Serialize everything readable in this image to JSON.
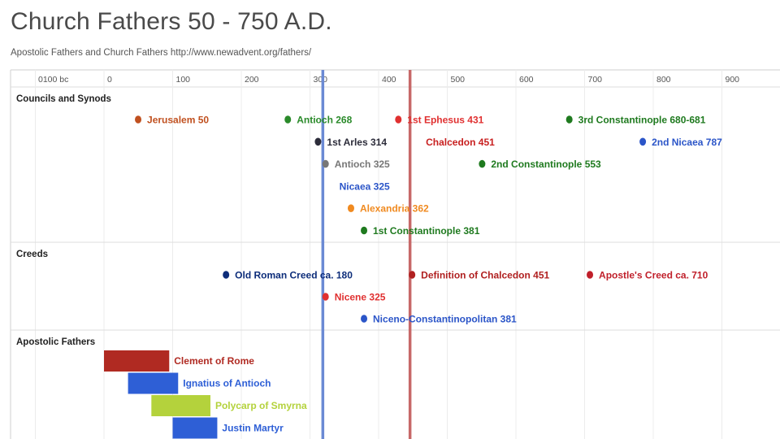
{
  "header": {
    "title": "Church Fathers 50 - 750 A.D.",
    "subtitle": "Apostolic Fathers and Church Fathers http://www.newadvent.org/fathers/"
  },
  "chart_data": {
    "type": "timeline",
    "axis": {
      "ticks": [
        {
          "value": -100,
          "label": "0100 bc"
        },
        {
          "value": 0,
          "label": "0"
        },
        {
          "value": 100,
          "label": "100"
        },
        {
          "value": 200,
          "label": "200"
        },
        {
          "value": 300,
          "label": "300"
        },
        {
          "value": 400,
          "label": "400"
        },
        {
          "value": 500,
          "label": "500"
        },
        {
          "value": 600,
          "label": "600"
        },
        {
          "value": 700,
          "label": "700"
        },
        {
          "value": 800,
          "label": "800"
        },
        {
          "value": 900,
          "label": "900"
        }
      ]
    },
    "markers": [
      {
        "year": 314,
        "color": "#6b8ad4"
      },
      {
        "year": 441,
        "color": "#c76868"
      }
    ],
    "sections": [
      {
        "label": "Councils and Synods",
        "events": [
          {
            "label": "Jerusalem 50",
            "year": 45,
            "row": 0,
            "color": "#c0501f",
            "dot": true
          },
          {
            "label": "Antioch 268",
            "year": 263,
            "row": 0,
            "color": "#2a8a2a",
            "dot": true
          },
          {
            "label": "1st Ephesus 431",
            "year": 424,
            "row": 0,
            "color": "#e03030",
            "dot": true
          },
          {
            "label": "3rd Constantinople 680-681",
            "year": 673,
            "row": 0,
            "color": "#1f7a1f",
            "dot": true
          },
          {
            "label": "1st Arles 314",
            "year": 307,
            "row": 1,
            "color": "#2c2c3a",
            "dot": true
          },
          {
            "label": "Chalcedon 451",
            "year": 451,
            "row": 1,
            "color": "#c82020",
            "dot": false
          },
          {
            "label": "2nd Nicaea 787",
            "year": 780,
            "row": 1,
            "color": "#2b55c8",
            "dot": true
          },
          {
            "label": "Antioch 325",
            "year": 318,
            "row": 2,
            "color": "#777777",
            "dot": true
          },
          {
            "label": "2nd Constantinople 553",
            "year": 546,
            "row": 2,
            "color": "#1f7a1f",
            "dot": true
          },
          {
            "label": "Nicaea 325",
            "year": 325,
            "row": 3,
            "color": "#2b55c8",
            "dot": false
          },
          {
            "label": "Alexandria 362",
            "year": 355,
            "row": 4,
            "color": "#f08a20",
            "dot": true
          },
          {
            "label": "1st Constantinople 381",
            "year": 374,
            "row": 5,
            "color": "#1f7a1f",
            "dot": true
          }
        ]
      },
      {
        "label": "Creeds",
        "events": [
          {
            "label": "Old Roman Creed ca. 180",
            "year": 173,
            "row": 0,
            "color": "#0d2d7a",
            "dot": true
          },
          {
            "label": "Definition of Chalcedon 451",
            "year": 444,
            "row": 0,
            "color": "#b02020",
            "dot": true
          },
          {
            "label": "Apostle's Creed ca. 710",
            "year": 703,
            "row": 0,
            "color": "#c01f2a",
            "dot": true
          },
          {
            "label": "Nicene 325",
            "year": 318,
            "row": 1,
            "color": "#e03030",
            "dot": true
          },
          {
            "label": "Niceno-Constantinopolitan 381",
            "year": 374,
            "row": 2,
            "color": "#2b55c8",
            "dot": true
          }
        ]
      },
      {
        "label": "Apostolic Fathers",
        "spans": [
          {
            "label": "Clement of Rome",
            "start": 0,
            "end": 95,
            "color": "#b02a22"
          },
          {
            "label": "Ignatius of Antioch",
            "start": 35,
            "end": 108,
            "color": "#2e5fd6"
          },
          {
            "label": "Polycarp of Smyrna",
            "start": 69,
            "end": 155,
            "color": "#b4d23c"
          },
          {
            "label": "Justin Martyr",
            "start": 100,
            "end": 165,
            "color": "#2e5fd6"
          }
        ]
      }
    ]
  }
}
